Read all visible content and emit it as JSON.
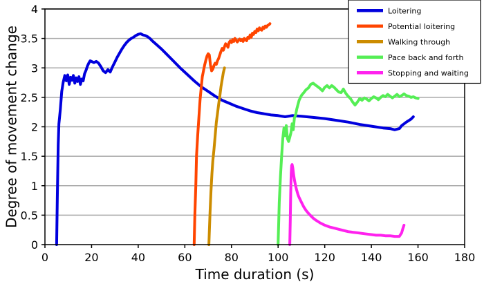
{
  "chart_data": {
    "type": "line",
    "title": "",
    "xlabel": "Time duration (s)",
    "ylabel": "Degree of movement change",
    "xlim": [
      0,
      180
    ],
    "ylim": [
      0,
      4
    ],
    "xticks": [
      0,
      20,
      40,
      60,
      80,
      100,
      120,
      140,
      160,
      180
    ],
    "yticks": [
      0,
      0.5,
      1,
      1.5,
      2,
      2.5,
      3,
      3.5,
      4
    ],
    "xtick_labels": [
      "0",
      "20",
      "40",
      "60",
      "80",
      "100",
      "120",
      "140",
      "160",
      "180"
    ],
    "ytick_labels": [
      "0",
      "0.5",
      "1",
      "1.5",
      "2",
      "2.5",
      "3",
      "3.5",
      "4"
    ],
    "grid": "horizontal",
    "legend_position": "top-right",
    "series": [
      {
        "name": "Loitering",
        "color": "#0000dd",
        "x": [
          5,
          5.3,
          5.7,
          6,
          6.6,
          7.2,
          7.8,
          8.5,
          9.2,
          9.8,
          10.4,
          11,
          11.6,
          12.2,
          12.8,
          13.4,
          14,
          14.6,
          15.2,
          15.8,
          16.4,
          17,
          17.6,
          18.2,
          18.8,
          19.4,
          20,
          21,
          22,
          23,
          24,
          25,
          26,
          27,
          28,
          29,
          30,
          31,
          32,
          33,
          34,
          35,
          36,
          37,
          38,
          39,
          40,
          41,
          42,
          43,
          44,
          45,
          46,
          48,
          50,
          52,
          55,
          58,
          61,
          64,
          67,
          70,
          73,
          76,
          79,
          82,
          85,
          88,
          91,
          94,
          97,
          100,
          103,
          106,
          110,
          115,
          120,
          125,
          130,
          135,
          140,
          145,
          148,
          150,
          152,
          153,
          155,
          157,
          158
        ],
        "values": [
          0,
          0.8,
          1.7,
          2.05,
          2.3,
          2.6,
          2.75,
          2.87,
          2.78,
          2.88,
          2.72,
          2.84,
          2.79,
          2.87,
          2.74,
          2.83,
          2.77,
          2.85,
          2.72,
          2.81,
          2.78,
          2.9,
          2.96,
          3.03,
          3.08,
          3.12,
          3.11,
          3.09,
          3.11,
          3.08,
          3.02,
          2.95,
          2.92,
          2.97,
          2.93,
          3.02,
          3.1,
          3.18,
          3.25,
          3.32,
          3.38,
          3.43,
          3.47,
          3.5,
          3.52,
          3.55,
          3.57,
          3.58,
          3.56,
          3.55,
          3.53,
          3.5,
          3.46,
          3.39,
          3.32,
          3.24,
          3.12,
          3.0,
          2.89,
          2.78,
          2.68,
          2.6,
          2.52,
          2.45,
          2.4,
          2.35,
          2.31,
          2.27,
          2.24,
          2.22,
          2.2,
          2.19,
          2.17,
          2.19,
          2.18,
          2.16,
          2.14,
          2.11,
          2.08,
          2.04,
          2.01,
          1.98,
          1.97,
          1.95,
          1.97,
          2.02,
          2.08,
          2.13,
          2.17
        ]
      },
      {
        "name": "Potential loitering",
        "color": "#ff4500",
        "x": [
          64,
          64.3,
          64.7,
          65,
          65.5,
          66,
          66.5,
          67,
          67.5,
          68,
          68.5,
          69,
          69.5,
          70,
          70.5,
          71,
          71.5,
          72,
          72.5,
          73,
          73.5,
          74,
          74.5,
          75,
          75.5,
          76,
          76.5,
          77,
          77.5,
          78,
          78.5,
          79,
          79.5,
          80,
          80.5,
          81,
          81.5,
          82,
          82.5,
          83,
          83.5,
          84,
          84.5,
          85,
          85.5,
          86,
          86.5,
          87,
          87.5,
          88,
          88.5,
          89,
          89.5,
          90,
          90.5,
          91,
          91.5,
          92,
          92.5,
          93,
          93.5,
          94,
          94.5,
          95,
          95.5,
          96,
          96.5
        ],
        "values": [
          0,
          0.5,
          1.0,
          1.5,
          1.85,
          2.15,
          2.45,
          2.65,
          2.85,
          2.95,
          3.05,
          3.13,
          3.2,
          3.24,
          3.22,
          3.05,
          2.95,
          2.98,
          3.04,
          3.08,
          3.06,
          3.12,
          3.16,
          3.22,
          3.28,
          3.33,
          3.3,
          3.36,
          3.41,
          3.39,
          3.35,
          3.43,
          3.46,
          3.43,
          3.48,
          3.45,
          3.5,
          3.47,
          3.44,
          3.47,
          3.49,
          3.46,
          3.48,
          3.45,
          3.5,
          3.48,
          3.46,
          3.52,
          3.5,
          3.56,
          3.52,
          3.59,
          3.57,
          3.62,
          3.6,
          3.66,
          3.63,
          3.68,
          3.65,
          3.64,
          3.69,
          3.67,
          3.71,
          3.69,
          3.72,
          3.73,
          3.75
        ]
      },
      {
        "name": "Walking through",
        "color": "#cc8c00",
        "x": [
          70.3,
          70.5,
          70.8,
          71.2,
          71.6,
          72,
          72.5,
          73,
          73.5,
          74,
          74.5,
          75,
          75.5,
          76,
          76.5,
          77
        ],
        "values": [
          0,
          0.2,
          0.55,
          0.9,
          1.2,
          1.42,
          1.62,
          1.85,
          2.08,
          2.22,
          2.38,
          2.52,
          2.68,
          2.8,
          2.92,
          3.0
        ]
      },
      {
        "name": "Pace back and forth",
        "color": "#55ee55",
        "x": [
          100,
          100.2,
          100.5,
          101,
          101.5,
          102,
          102.5,
          103,
          103.5,
          104,
          104.5,
          105,
          105.5,
          106,
          106.5,
          107,
          107.5,
          108,
          109,
          110,
          111,
          112,
          113,
          114,
          115,
          116,
          117,
          118,
          119,
          120,
          121,
          122,
          123,
          124,
          125,
          126,
          127,
          128,
          129,
          130,
          131,
          132,
          133,
          134,
          135,
          136,
          137,
          138,
          139,
          140,
          141,
          142,
          143,
          144,
          145,
          146,
          147,
          148,
          149,
          150,
          151,
          152,
          153,
          154,
          155,
          156,
          157,
          158,
          159,
          160
        ],
        "values": [
          0,
          0.3,
          0.72,
          1.15,
          1.5,
          1.8,
          1.98,
          1.85,
          2.02,
          1.8,
          1.75,
          1.82,
          1.9,
          2.05,
          1.95,
          2.15,
          2.2,
          2.3,
          2.45,
          2.53,
          2.58,
          2.63,
          2.66,
          2.72,
          2.74,
          2.71,
          2.68,
          2.65,
          2.61,
          2.67,
          2.7,
          2.66,
          2.7,
          2.67,
          2.63,
          2.59,
          2.58,
          2.64,
          2.57,
          2.52,
          2.48,
          2.42,
          2.37,
          2.42,
          2.48,
          2.45,
          2.49,
          2.47,
          2.44,
          2.48,
          2.51,
          2.49,
          2.46,
          2.5,
          2.53,
          2.51,
          2.55,
          2.52,
          2.49,
          2.52,
          2.55,
          2.51,
          2.53,
          2.56,
          2.53,
          2.52,
          2.5,
          2.51,
          2.49,
          2.48
        ]
      },
      {
        "name": "Stopping and waiting",
        "color": "#ff22ee",
        "x": [
          105,
          105.2,
          105.4,
          105.6,
          105.8,
          106,
          106.3,
          106.6,
          107,
          107.5,
          108,
          108.5,
          109,
          110,
          111,
          112,
          113,
          114,
          115,
          116,
          118,
          120,
          122,
          124,
          126,
          128,
          130,
          132,
          134,
          136,
          138,
          140,
          142,
          144,
          146,
          148,
          150,
          152,
          153,
          153.5,
          154
        ],
        "values": [
          0,
          0.4,
          0.85,
          1.2,
          1.34,
          1.36,
          1.3,
          1.2,
          1.1,
          1.0,
          0.92,
          0.85,
          0.8,
          0.72,
          0.64,
          0.58,
          0.53,
          0.49,
          0.45,
          0.42,
          0.37,
          0.33,
          0.3,
          0.28,
          0.26,
          0.24,
          0.22,
          0.21,
          0.2,
          0.19,
          0.18,
          0.17,
          0.16,
          0.16,
          0.15,
          0.15,
          0.14,
          0.14,
          0.2,
          0.27,
          0.33
        ]
      }
    ]
  }
}
